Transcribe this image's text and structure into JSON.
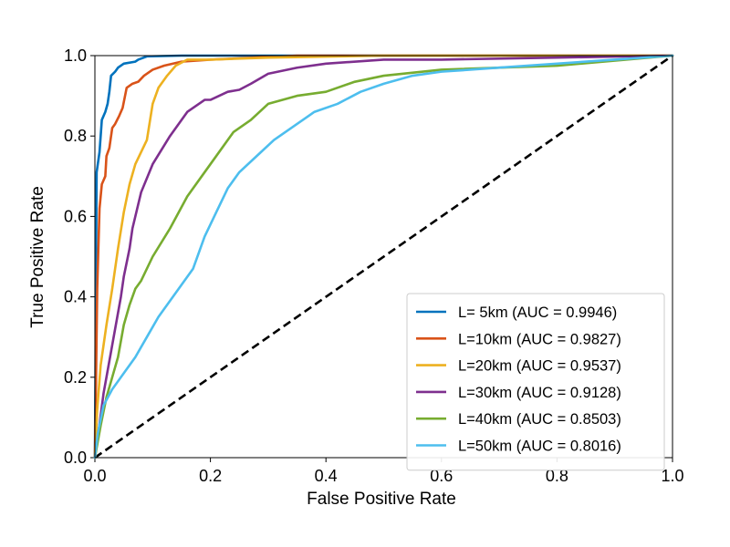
{
  "chart_data": {
    "type": "line",
    "title": "",
    "xlabel": "False Positive Rate",
    "ylabel": "True Positive Rate",
    "xlim": [
      0,
      1
    ],
    "ylim": [
      0,
      1
    ],
    "xticks": [
      "0.0",
      "0.2",
      "0.4",
      "0.6",
      "0.8",
      "1.0"
    ],
    "yticks": [
      "0.0",
      "0.2",
      "0.4",
      "0.6",
      "0.8",
      "1.0"
    ],
    "grid": false,
    "legend_position": "lower-right",
    "series": [
      {
        "name": "L= 5km (AUC = 0.9946)",
        "color": "#0072BD",
        "points": [
          [
            0,
            0
          ],
          [
            0.001,
            0.2
          ],
          [
            0.002,
            0.5
          ],
          [
            0.003,
            0.71
          ],
          [
            0.008,
            0.76
          ],
          [
            0.012,
            0.84
          ],
          [
            0.018,
            0.86
          ],
          [
            0.022,
            0.88
          ],
          [
            0.025,
            0.91
          ],
          [
            0.028,
            0.95
          ],
          [
            0.035,
            0.96
          ],
          [
            0.04,
            0.97
          ],
          [
            0.05,
            0.98
          ],
          [
            0.07,
            0.985
          ],
          [
            0.075,
            0.99
          ],
          [
            0.09,
            0.998
          ],
          [
            0.15,
            1.0
          ],
          [
            1.0,
            1.0
          ]
        ]
      },
      {
        "name": "L=10km (AUC = 0.9827)",
        "color": "#D95319",
        "points": [
          [
            0,
            0
          ],
          [
            0.002,
            0.2
          ],
          [
            0.004,
            0.42
          ],
          [
            0.008,
            0.62
          ],
          [
            0.012,
            0.68
          ],
          [
            0.018,
            0.7
          ],
          [
            0.02,
            0.75
          ],
          [
            0.025,
            0.77
          ],
          [
            0.03,
            0.82
          ],
          [
            0.035,
            0.83
          ],
          [
            0.042,
            0.85
          ],
          [
            0.048,
            0.87
          ],
          [
            0.055,
            0.92
          ],
          [
            0.065,
            0.93
          ],
          [
            0.075,
            0.935
          ],
          [
            0.085,
            0.95
          ],
          [
            0.1,
            0.965
          ],
          [
            0.12,
            0.975
          ],
          [
            0.15,
            0.985
          ],
          [
            0.2,
            0.99
          ],
          [
            0.35,
            1.0
          ],
          [
            1.0,
            1.0
          ]
        ]
      },
      {
        "name": "L=20km (AUC = 0.9537)",
        "color": "#EDB120",
        "points": [
          [
            0,
            0
          ],
          [
            0.004,
            0.12
          ],
          [
            0.01,
            0.23
          ],
          [
            0.02,
            0.33
          ],
          [
            0.03,
            0.42
          ],
          [
            0.04,
            0.52
          ],
          [
            0.05,
            0.61
          ],
          [
            0.06,
            0.68
          ],
          [
            0.07,
            0.73
          ],
          [
            0.08,
            0.76
          ],
          [
            0.09,
            0.79
          ],
          [
            0.1,
            0.88
          ],
          [
            0.11,
            0.92
          ],
          [
            0.125,
            0.95
          ],
          [
            0.14,
            0.975
          ],
          [
            0.16,
            0.99
          ],
          [
            0.2,
            0.99
          ],
          [
            0.3,
            0.995
          ],
          [
            0.5,
            1.0
          ],
          [
            1.0,
            1.0
          ]
        ]
      },
      {
        "name": "L=30km (AUC = 0.9128)",
        "color": "#7E2F8E",
        "points": [
          [
            0,
            0
          ],
          [
            0.005,
            0.05
          ],
          [
            0.015,
            0.16
          ],
          [
            0.025,
            0.24
          ],
          [
            0.035,
            0.32
          ],
          [
            0.045,
            0.4
          ],
          [
            0.05,
            0.45
          ],
          [
            0.06,
            0.52
          ],
          [
            0.065,
            0.57
          ],
          [
            0.08,
            0.66
          ],
          [
            0.1,
            0.73
          ],
          [
            0.13,
            0.8
          ],
          [
            0.16,
            0.86
          ],
          [
            0.19,
            0.89
          ],
          [
            0.2,
            0.89
          ],
          [
            0.23,
            0.91
          ],
          [
            0.25,
            0.915
          ],
          [
            0.27,
            0.93
          ],
          [
            0.3,
            0.955
          ],
          [
            0.35,
            0.97
          ],
          [
            0.4,
            0.98
          ],
          [
            0.5,
            0.99
          ],
          [
            0.6,
            0.99
          ],
          [
            0.8,
            0.995
          ],
          [
            1.0,
            1.0
          ]
        ]
      },
      {
        "name": "L=40km (AUC = 0.8503)",
        "color": "#77AC30",
        "points": [
          [
            0,
            0
          ],
          [
            0.005,
            0.04
          ],
          [
            0.01,
            0.08
          ],
          [
            0.02,
            0.15
          ],
          [
            0.03,
            0.2
          ],
          [
            0.04,
            0.25
          ],
          [
            0.05,
            0.33
          ],
          [
            0.06,
            0.38
          ],
          [
            0.07,
            0.42
          ],
          [
            0.08,
            0.44
          ],
          [
            0.1,
            0.5
          ],
          [
            0.13,
            0.57
          ],
          [
            0.16,
            0.65
          ],
          [
            0.2,
            0.73
          ],
          [
            0.24,
            0.81
          ],
          [
            0.27,
            0.84
          ],
          [
            0.3,
            0.88
          ],
          [
            0.35,
            0.9
          ],
          [
            0.4,
            0.91
          ],
          [
            0.45,
            0.935
          ],
          [
            0.5,
            0.95
          ],
          [
            0.6,
            0.965
          ],
          [
            0.8,
            0.975
          ],
          [
            1.0,
            1.0
          ]
        ]
      },
      {
        "name": "L=50km (AUC = 0.8016)",
        "color": "#4DBEEE",
        "points": [
          [
            0,
            0
          ],
          [
            0.005,
            0.06
          ],
          [
            0.015,
            0.13
          ],
          [
            0.03,
            0.17
          ],
          [
            0.05,
            0.21
          ],
          [
            0.07,
            0.25
          ],
          [
            0.09,
            0.3
          ],
          [
            0.11,
            0.35
          ],
          [
            0.13,
            0.39
          ],
          [
            0.15,
            0.43
          ],
          [
            0.17,
            0.47
          ],
          [
            0.19,
            0.55
          ],
          [
            0.21,
            0.61
          ],
          [
            0.23,
            0.67
          ],
          [
            0.25,
            0.71
          ],
          [
            0.28,
            0.75
          ],
          [
            0.31,
            0.79
          ],
          [
            0.35,
            0.83
          ],
          [
            0.38,
            0.86
          ],
          [
            0.42,
            0.88
          ],
          [
            0.46,
            0.91
          ],
          [
            0.5,
            0.93
          ],
          [
            0.55,
            0.95
          ],
          [
            0.6,
            0.96
          ],
          [
            0.7,
            0.97
          ],
          [
            0.8,
            0.98
          ],
          [
            0.9,
            0.99
          ],
          [
            1.0,
            1.0
          ]
        ]
      }
    ],
    "reference_line": {
      "color": "#000000",
      "style": "dashed",
      "points": [
        [
          0,
          0
        ],
        [
          1,
          1
        ]
      ]
    }
  }
}
